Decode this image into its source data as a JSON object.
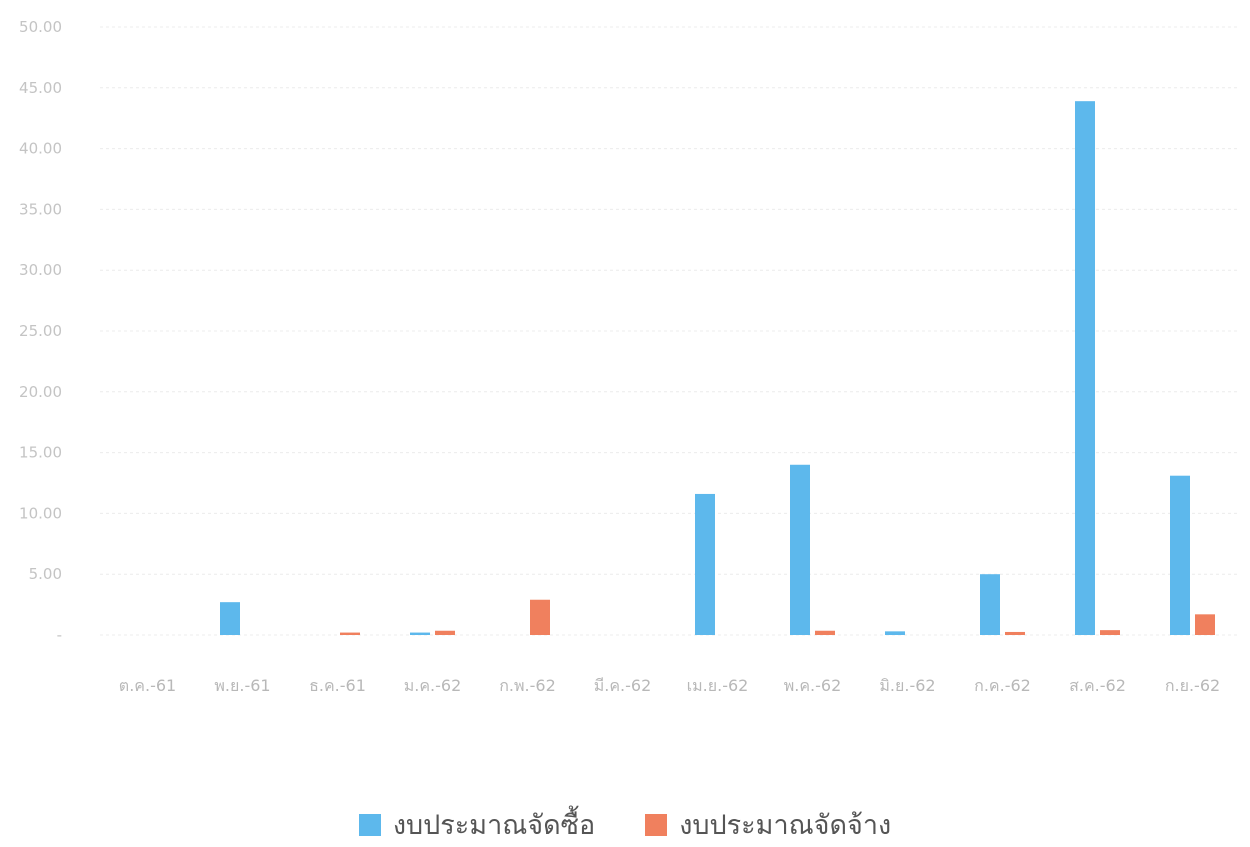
{
  "chart_data": {
    "type": "bar",
    "categories": [
      "ต.ค.-61",
      "พ.ย.-61",
      "ธ.ค.-61",
      "ม.ค.-62",
      "ก.พ.-62",
      "มี.ค.-62",
      "เม.ย.-62",
      "พ.ค.-62",
      "มิ.ย.-62",
      "ก.ค.-62",
      "ส.ค.-62",
      "ก.ย.-62"
    ],
    "series": [
      {
        "name": "งบประมาณจัดซื้อ",
        "color": "#5db8ec",
        "values": [
          0,
          2.7,
          0,
          0.2,
          0,
          0,
          11.6,
          14.0,
          0.3,
          5.0,
          43.9,
          13.1
        ]
      },
      {
        "name": "งบประมาณจัดจ้าง",
        "color": "#f0805e",
        "values": [
          0,
          0,
          0.2,
          0.35,
          2.9,
          0,
          0,
          0.35,
          0,
          0.25,
          0.4,
          1.7
        ]
      }
    ],
    "yticks": [
      "-",
      "5.00",
      "10.00",
      "15.00",
      "20.00",
      "25.00",
      "30.00",
      "35.00",
      "40.00",
      "45.00",
      "50.00"
    ],
    "ylim": [
      0,
      50
    ],
    "grid": true,
    "legend_position": "bottom"
  }
}
